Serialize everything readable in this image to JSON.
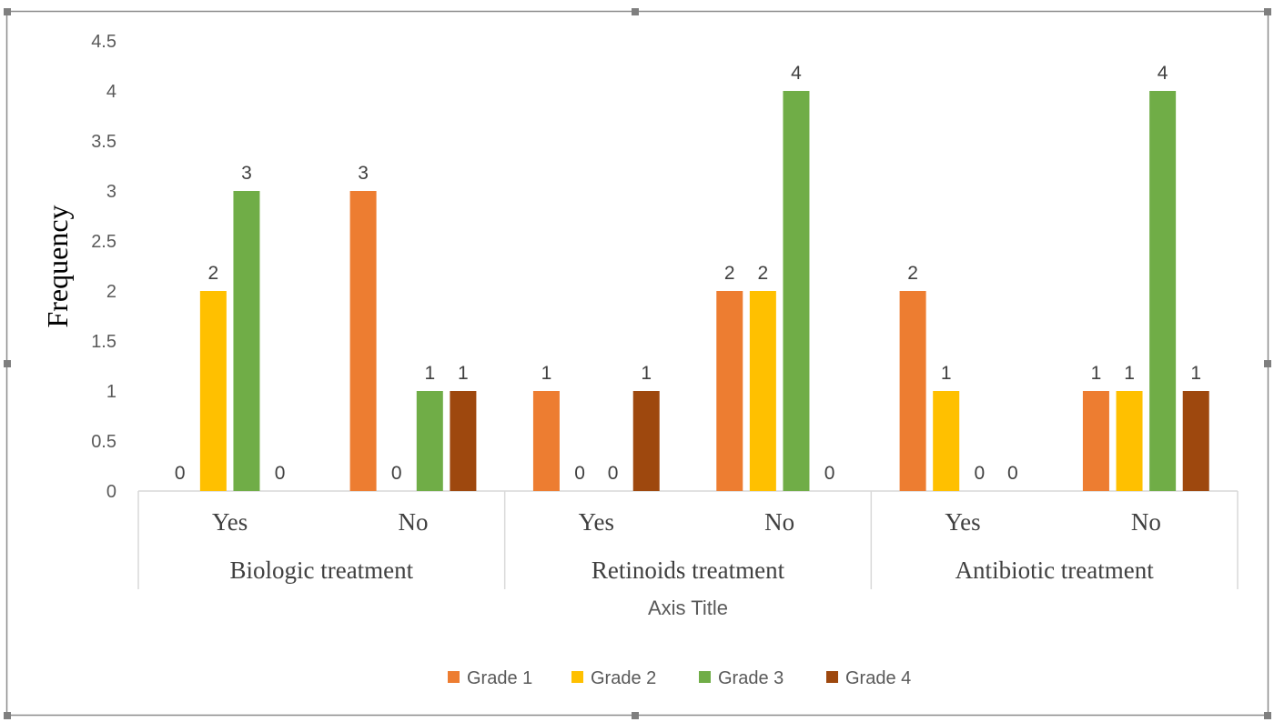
{
  "chart_data": {
    "type": "bar",
    "ylabel": "Frequency",
    "xlabel": "Axis Title",
    "ylim": [
      0,
      4.5
    ],
    "yticks": [
      "0",
      "0.5",
      "1",
      "1.5",
      "2",
      "2.5",
      "3",
      "3.5",
      "4",
      "4.5"
    ],
    "grid": false,
    "legend_position": "bottom",
    "groups": [
      {
        "label": "Biologic treatment",
        "categories": [
          "Yes",
          "No"
        ]
      },
      {
        "label": "Retinoids treatment",
        "categories": [
          "Yes",
          "No"
        ]
      },
      {
        "label": "Antibiotic treatment",
        "categories": [
          "Yes",
          "No"
        ]
      }
    ],
    "series": [
      {
        "name": "Grade 1",
        "color": "#ED7D31",
        "values": [
          0,
          3,
          1,
          2,
          2,
          1
        ]
      },
      {
        "name": "Grade 2",
        "color": "#FFC000",
        "values": [
          2,
          0,
          0,
          2,
          1,
          1
        ]
      },
      {
        "name": "Grade 3",
        "color": "#70AD47",
        "values": [
          3,
          1,
          0,
          4,
          0,
          4
        ]
      },
      {
        "name": "Grade 4",
        "color": "#9E480E",
        "values": [
          0,
          1,
          1,
          0,
          0,
          1
        ]
      }
    ]
  }
}
